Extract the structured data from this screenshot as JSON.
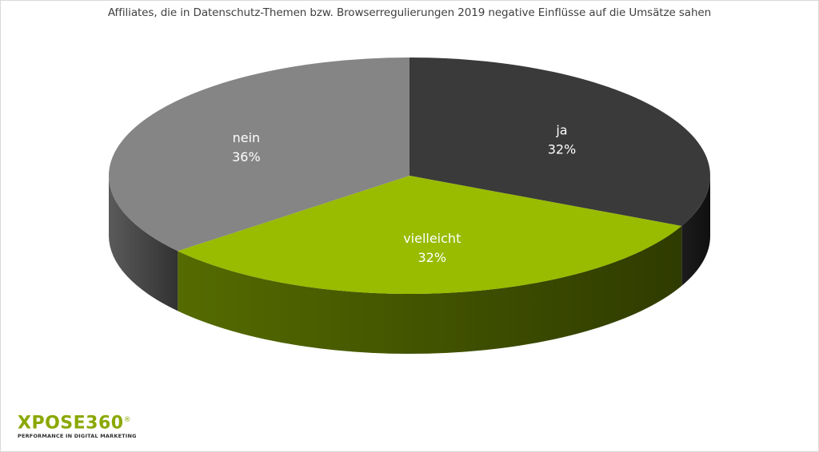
{
  "chart_data": {
    "type": "pie",
    "title": "Affiliates, die in Datenschutz-Themen bzw. Browserregulierungen 2019 negative Einflüsse auf die Umsätze sahen",
    "slices": [
      {
        "label": "ja",
        "value": 32,
        "display": "32%",
        "color": "#3a3a3a",
        "side_color": "#1c1c1c"
      },
      {
        "label": "vielleicht",
        "value": 32,
        "display": "32%",
        "color": "#99bb00",
        "side_color": "#556b00"
      },
      {
        "label": "nein",
        "value": 36,
        "display": "36%",
        "color": "#858585",
        "side_color": "#5a5a5a"
      }
    ]
  },
  "logo": {
    "name": "XPOSE360",
    "registered": "®",
    "tagline": "PERFORMANCE IN DIGITAL MARKETING"
  }
}
